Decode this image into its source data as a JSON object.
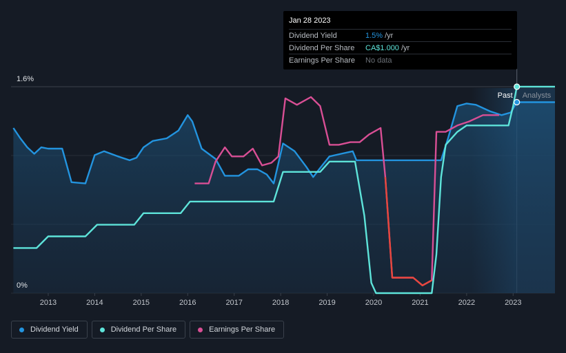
{
  "chart_data": {
    "type": "line",
    "y_axis": {
      "top_label": "1.6%",
      "bottom_label": "0%",
      "ylim": [
        0,
        1.6
      ]
    },
    "x_ticks": [
      "2013",
      "2014",
      "2015",
      "2016",
      "2017",
      "2018",
      "2019",
      "2020",
      "2021",
      "2022",
      "2023"
    ],
    "xlim": [
      2012.2,
      2023.9
    ],
    "grid": true,
    "legend_position": "bottom-left",
    "divider_x": 2023.08,
    "forecast_end_x": 2023.9,
    "past_label": "Past",
    "analysts_label": "Analysts",
    "series": [
      {
        "key": "dividend_yield",
        "color": "#2394df",
        "area": true,
        "points": [
          [
            2012.25,
            1.28
          ],
          [
            2012.4,
            1.2
          ],
          [
            2012.55,
            1.13
          ],
          [
            2012.7,
            1.08
          ],
          [
            2012.85,
            1.13
          ],
          [
            2013.0,
            1.12
          ],
          [
            2013.3,
            1.12
          ],
          [
            2013.5,
            0.86
          ],
          [
            2013.8,
            0.85
          ],
          [
            2014.0,
            1.07
          ],
          [
            2014.2,
            1.1
          ],
          [
            2014.5,
            1.06
          ],
          [
            2014.75,
            1.03
          ],
          [
            2014.9,
            1.05
          ],
          [
            2015.05,
            1.13
          ],
          [
            2015.25,
            1.18
          ],
          [
            2015.55,
            1.2
          ],
          [
            2015.8,
            1.26
          ],
          [
            2016.0,
            1.38
          ],
          [
            2016.1,
            1.33
          ],
          [
            2016.3,
            1.12
          ],
          [
            2016.6,
            1.04
          ],
          [
            2016.8,
            0.91
          ],
          [
            2017.1,
            0.91
          ],
          [
            2017.3,
            0.96
          ],
          [
            2017.5,
            0.96
          ],
          [
            2017.7,
            0.92
          ],
          [
            2017.85,
            0.85
          ],
          [
            2018.05,
            1.16
          ],
          [
            2018.3,
            1.1
          ],
          [
            2018.55,
            0.98
          ],
          [
            2018.7,
            0.9
          ],
          [
            2018.85,
            0.97
          ],
          [
            2019.05,
            1.06
          ],
          [
            2019.3,
            1.08
          ],
          [
            2019.55,
            1.1
          ],
          [
            2019.63,
            1.03
          ],
          [
            2020.0,
            1.03
          ],
          [
            2021.45,
            1.03
          ],
          [
            2021.6,
            1.2
          ],
          [
            2021.8,
            1.45
          ],
          [
            2022.0,
            1.47
          ],
          [
            2022.2,
            1.46
          ],
          [
            2022.5,
            1.41
          ],
          [
            2022.75,
            1.38
          ],
          [
            2022.95,
            1.4
          ],
          [
            2023.08,
            1.48
          ],
          [
            2023.9,
            1.48
          ]
        ]
      },
      {
        "key": "dividend_per_share",
        "color": "#5ee4da",
        "area": false,
        "points": [
          [
            2012.25,
            0.35
          ],
          [
            2012.75,
            0.35
          ],
          [
            2013.0,
            0.44
          ],
          [
            2013.8,
            0.44
          ],
          [
            2014.05,
            0.53
          ],
          [
            2014.85,
            0.53
          ],
          [
            2015.05,
            0.62
          ],
          [
            2015.85,
            0.62
          ],
          [
            2016.05,
            0.71
          ],
          [
            2017.85,
            0.71
          ],
          [
            2018.05,
            0.94
          ],
          [
            2018.85,
            0.94
          ],
          [
            2019.05,
            1.02
          ],
          [
            2019.6,
            1.02
          ],
          [
            2019.8,
            0.6
          ],
          [
            2019.95,
            0.08
          ],
          [
            2020.05,
            0.0
          ],
          [
            2021.25,
            0.0
          ],
          [
            2021.35,
            0.3
          ],
          [
            2021.45,
            0.9
          ],
          [
            2021.55,
            1.15
          ],
          [
            2021.8,
            1.25
          ],
          [
            2022.0,
            1.3
          ],
          [
            2022.75,
            1.3
          ],
          [
            2022.9,
            1.3
          ],
          [
            2023.0,
            1.45
          ],
          [
            2023.08,
            1.6
          ],
          [
            2023.9,
            1.6
          ]
        ]
      },
      {
        "key": "earnings_per_share",
        "color": "#d94f95",
        "area": false,
        "points": [
          [
            2016.15,
            0.85
          ],
          [
            2016.45,
            0.85
          ],
          [
            2016.6,
            1.02
          ],
          [
            2016.8,
            1.13
          ],
          [
            2016.95,
            1.06
          ],
          [
            2017.2,
            1.06
          ],
          [
            2017.4,
            1.12
          ],
          [
            2017.6,
            0.99
          ],
          [
            2017.8,
            1.01
          ],
          [
            2017.95,
            1.06
          ],
          [
            2018.1,
            1.51
          ],
          [
            2018.35,
            1.46
          ],
          [
            2018.65,
            1.52
          ],
          [
            2018.85,
            1.45
          ],
          [
            2019.05,
            1.15
          ],
          [
            2019.25,
            1.15
          ],
          [
            2019.5,
            1.17
          ],
          [
            2019.7,
            1.17
          ],
          [
            2019.9,
            1.23
          ],
          [
            2020.15,
            1.28
          ],
          [
            2020.25,
            0.9
          ],
          [
            2020.4,
            0.12
          ],
          [
            2020.5,
            0.12
          ],
          [
            2020.85,
            0.12
          ],
          [
            2021.05,
            0.06
          ],
          [
            2021.25,
            0.1
          ],
          [
            2021.35,
            1.25
          ],
          [
            2021.55,
            1.25
          ],
          [
            2021.8,
            1.3
          ],
          [
            2022.05,
            1.33
          ],
          [
            2022.35,
            1.38
          ],
          [
            2022.7,
            1.38
          ]
        ]
      }
    ]
  },
  "tooltip": {
    "date": "Jan 28 2023",
    "rows": [
      {
        "label": "Dividend Yield",
        "value": "1.5%",
        "unit": "/yr",
        "color": "#2394df"
      },
      {
        "label": "Dividend Per Share",
        "value": "CA$1.000",
        "unit": "/yr",
        "color": "#5ee4da"
      },
      {
        "label": "Earnings Per Share",
        "value": "No data",
        "unit": "",
        "color": "#6c7178"
      }
    ]
  },
  "legend": [
    {
      "label": "Dividend Yield",
      "color": "#2394df"
    },
    {
      "label": "Dividend Per Share",
      "color": "#5ee4da"
    },
    {
      "label": "Earnings Per Share",
      "color": "#d94f95"
    }
  ]
}
